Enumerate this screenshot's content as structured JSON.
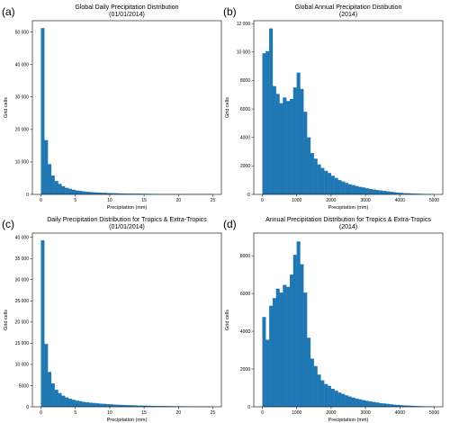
{
  "colors": {
    "bar": "#1f77b4",
    "axis": "#000000",
    "background": "#ffffff"
  },
  "chart_data": [
    {
      "panel": "(a)",
      "type": "bar",
      "title": "Global Daily Precipitation Distribution",
      "subtitle": "(01/01/2014)",
      "xlabel": "Precipitation (mm)",
      "ylabel": "Grid cells",
      "xlim": [
        -1.25,
        26.25
      ],
      "ylim": [
        0,
        53500
      ],
      "xticks": [
        0,
        5,
        10,
        15,
        20,
        25
      ],
      "xtick_labels": [
        "0",
        "5",
        "10",
        "15",
        "20",
        "25"
      ],
      "yticks": [
        0,
        10000,
        20000,
        30000,
        40000,
        50000
      ],
      "ytick_labels": [
        "0",
        "10 000",
        "20 000",
        "30 000",
        "40 000",
        "50 000"
      ],
      "bin_start": 0,
      "bin_width": 0.5,
      "values": [
        51200,
        16700,
        9300,
        5800,
        4100,
        3200,
        2500,
        2000,
        1700,
        1400,
        1200,
        1050,
        900,
        800,
        700,
        620,
        560,
        500,
        450,
        400,
        360,
        330,
        300,
        270,
        250,
        230,
        210,
        190,
        170,
        155,
        140,
        130,
        120,
        110,
        100,
        95,
        90,
        85,
        80,
        75,
        70,
        65,
        60,
        55,
        50,
        45,
        42,
        40,
        38,
        35
      ]
    },
    {
      "panel": "(b)",
      "type": "bar",
      "title": "Global Annual Precipitation Distibution",
      "subtitle": "(2014)",
      "xlabel": "Precipitation (mm)",
      "ylabel": "Grid cells",
      "xlim": [
        -250,
        5250
      ],
      "ylim": [
        0,
        12200
      ],
      "xticks": [
        0,
        1000,
        2000,
        3000,
        4000,
        5000
      ],
      "xtick_labels": [
        "0",
        "1000",
        "2000",
        "3000",
        "4000",
        "5000"
      ],
      "yticks": [
        0,
        2000,
        4000,
        6000,
        8000,
        10000,
        12000
      ],
      "ytick_labels": [
        "0",
        "2000",
        "4000",
        "6000",
        "8000",
        "10 000",
        "12 000"
      ],
      "bin_start": 0,
      "bin_width": 100,
      "values": [
        9900,
        10050,
        11650,
        7600,
        7050,
        6400,
        6800,
        6550,
        6700,
        7500,
        8550,
        7400,
        5800,
        4000,
        2900,
        2500,
        2100,
        1850,
        1650,
        1500,
        1300,
        1150,
        1000,
        900,
        800,
        700,
        650,
        580,
        520,
        480,
        420,
        380,
        340,
        300,
        270,
        240,
        210,
        180,
        150,
        120,
        100,
        80,
        70,
        60,
        50,
        40,
        30,
        25,
        20,
        15
      ]
    },
    {
      "panel": "(c)",
      "type": "bar",
      "title": "Daily Precipitation Distribution for Tropics & Extra-Tropics",
      "subtitle": "(01/01/2014)",
      "xlabel": "Precipitation (mm)",
      "ylabel": "Grid cells",
      "xlim": [
        -1.25,
        26.25
      ],
      "ylim": [
        0,
        41000
      ],
      "xticks": [
        0,
        5,
        10,
        15,
        20,
        25
      ],
      "xtick_labels": [
        "0",
        "5",
        "10",
        "15",
        "20",
        "25"
      ],
      "yticks": [
        0,
        5000,
        10000,
        15000,
        20000,
        25000,
        30000,
        35000,
        40000
      ],
      "ytick_labels": [
        "0",
        "5000",
        "10 000",
        "15 000",
        "20 000",
        "25 000",
        "30 000",
        "35 000",
        "40 000"
      ],
      "bin_start": 0,
      "bin_width": 0.5,
      "values": [
        39300,
        14800,
        8200,
        5500,
        4000,
        3200,
        2600,
        2200,
        1900,
        1650,
        1450,
        1300,
        1150,
        1050,
        950,
        870,
        800,
        730,
        670,
        610,
        560,
        510,
        470,
        430,
        400,
        370,
        340,
        310,
        280,
        260,
        240,
        220,
        200,
        185,
        170,
        155,
        140,
        130,
        120,
        110,
        100,
        90,
        80,
        70,
        60,
        55,
        50,
        45,
        40,
        35
      ]
    },
    {
      "panel": "(d)",
      "type": "bar",
      "title": "Annual Precipitation Distribution for Tropics & Extra-Tropics",
      "subtitle": "(2014)",
      "xlabel": "Precipitation (mm)",
      "ylabel": "Grid cells",
      "xlim": [
        -250,
        5250
      ],
      "ylim": [
        0,
        9200
      ],
      "xticks": [
        0,
        1000,
        2000,
        3000,
        4000,
        5000
      ],
      "xtick_labels": [
        "0",
        "1000",
        "2000",
        "3000",
        "4000",
        "5000"
      ],
      "yticks": [
        0,
        2000,
        4000,
        6000,
        8000
      ],
      "ytick_labels": [
        "0",
        "2000",
        "4000",
        "6000",
        "8000"
      ],
      "bin_start": 0,
      "bin_width": 100,
      "values": [
        4750,
        3550,
        5350,
        5750,
        6250,
        6050,
        6450,
        6350,
        7000,
        8050,
        8750,
        7550,
        6050,
        3650,
        2550,
        2150,
        1700,
        1400,
        1200,
        1100,
        950,
        850,
        750,
        680,
        600,
        540,
        480,
        430,
        390,
        350,
        310,
        280,
        250,
        220,
        190,
        170,
        150,
        130,
        110,
        95,
        80,
        70,
        60,
        50,
        40,
        30,
        25,
        20,
        15,
        10
      ]
    }
  ]
}
